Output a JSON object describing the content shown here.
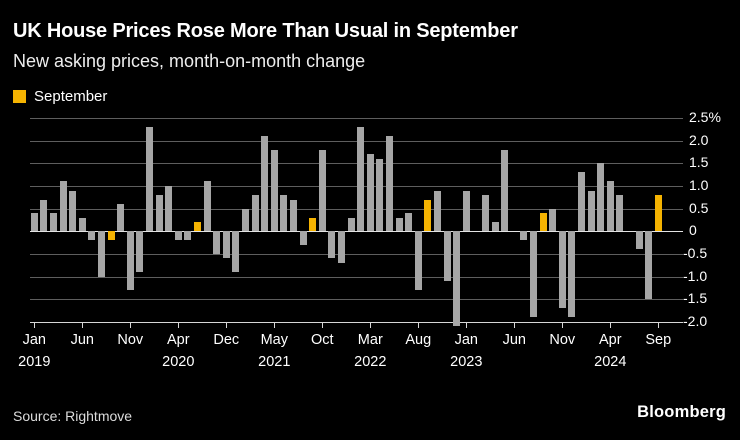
{
  "header": {
    "title": "UK House Prices Rose More Than Usual in September",
    "subtitle": "New asking prices, month-on-month change"
  },
  "legend": {
    "label": "September"
  },
  "footer": {
    "source": "Source: Rightmove",
    "brand": "Bloomberg"
  },
  "colors": {
    "background": "#000000",
    "bar": "#A6A6A6",
    "highlight": "#F5B301",
    "gridline": "#5E5E5E",
    "zero_line": "#E3E3E3",
    "axis_line": "#D7D7D7",
    "text": "#FFFFFF"
  },
  "chart_data": {
    "type": "bar",
    "title": "UK House Prices Rose More Than Usual in September",
    "subtitle": "New asking prices, month-on-month change",
    "unit": "%",
    "ylim": [
      -2.0,
      2.5
    ],
    "grid": true,
    "legend_position": "top-left",
    "legend_entries": [
      {
        "label": "September",
        "color": "#F5B301"
      }
    ],
    "ytick_values": [
      2.5,
      2.0,
      1.5,
      1.0,
      0.5,
      0,
      -0.5,
      -1.0,
      -1.5,
      -2.0
    ],
    "ytick_labels": [
      "2.5%",
      "2.0",
      "1.5",
      "1.0",
      "0.5",
      "0",
      "-0.5",
      "-1.0",
      "-1.5",
      "-2.0"
    ],
    "points": [
      {
        "month": "Jan 2019",
        "value": 0.4
      },
      {
        "month": "Feb 2019",
        "value": 0.7
      },
      {
        "month": "Mar 2019",
        "value": 0.4
      },
      {
        "month": "Apr 2019",
        "value": 1.1
      },
      {
        "month": "May 2019",
        "value": 0.9
      },
      {
        "month": "Jun 2019",
        "value": 0.3
      },
      {
        "month": "Jul 2019",
        "value": -0.2
      },
      {
        "month": "Aug 2019",
        "value": -1.0
      },
      {
        "month": "Sep 2019",
        "value": -0.2,
        "highlight": true
      },
      {
        "month": "Oct 2019",
        "value": 0.6
      },
      {
        "month": "Nov 2019",
        "value": -1.3
      },
      {
        "month": "Dec 2019",
        "value": -0.9
      },
      {
        "month": "Jan 2020",
        "value": 2.3
      },
      {
        "month": "Feb 2020",
        "value": 0.8
      },
      {
        "month": "Mar 2020",
        "value": 1.0
      },
      {
        "month": "Apr 2020",
        "value": -0.2
      },
      {
        "month": "Aug 2020",
        "value": -0.2
      },
      {
        "month": "Sep 2020",
        "value": 0.2,
        "highlight": true
      },
      {
        "month": "Oct 2020",
        "value": 1.1
      },
      {
        "month": "Nov 2020",
        "value": -0.5
      },
      {
        "month": "Dec 2020",
        "value": -0.6
      },
      {
        "month": "Jan 2021",
        "value": -0.9
      },
      {
        "month": "Feb 2021",
        "value": 0.5
      },
      {
        "month": "Mar 2021",
        "value": 0.8
      },
      {
        "month": "Apr 2021",
        "value": 2.1
      },
      {
        "month": "May 2021",
        "value": 1.8
      },
      {
        "month": "Jun 2021",
        "value": 0.8
      },
      {
        "month": "Jul 2021",
        "value": 0.7
      },
      {
        "month": "Aug 2021",
        "value": -0.3
      },
      {
        "month": "Sep 2021",
        "value": 0.3,
        "highlight": true
      },
      {
        "month": "Oct 2021",
        "value": 1.8
      },
      {
        "month": "Nov 2021",
        "value": -0.6
      },
      {
        "month": "Dec 2021",
        "value": -0.7
      },
      {
        "month": "Jan 2022",
        "value": 0.3
      },
      {
        "month": "Feb 2022",
        "value": 2.3
      },
      {
        "month": "Mar 2022",
        "value": 1.7
      },
      {
        "month": "Apr 2022",
        "value": 1.6
      },
      {
        "month": "May 2022",
        "value": 2.1
      },
      {
        "month": "Jun 2022",
        "value": 0.3
      },
      {
        "month": "Jul 2022",
        "value": 0.4
      },
      {
        "month": "Aug 2022",
        "value": -1.3
      },
      {
        "month": "Sep 2022",
        "value": 0.7,
        "highlight": true
      },
      {
        "month": "Oct 2022",
        "value": 0.9
      },
      {
        "month": "Nov 2022",
        "value": -1.1
      },
      {
        "month": "Dec 2022",
        "value": -2.1
      },
      {
        "month": "Jan 2023",
        "value": 0.9
      },
      {
        "month": "Feb 2023",
        "value": 0.0
      },
      {
        "month": "Mar 2023",
        "value": 0.8
      },
      {
        "month": "Apr 2023",
        "value": 0.2
      },
      {
        "month": "May 2023",
        "value": 1.8
      },
      {
        "month": "Jun 2023",
        "value": 0.0
      },
      {
        "month": "Jul 2023",
        "value": -0.2
      },
      {
        "month": "Aug 2023",
        "value": -1.9
      },
      {
        "month": "Sep 2023",
        "value": 0.4,
        "highlight": true
      },
      {
        "month": "Oct 2023",
        "value": 0.5
      },
      {
        "month": "Nov 2023",
        "value": -1.7
      },
      {
        "month": "Dec 2023",
        "value": -1.9
      },
      {
        "month": "Jan 2024",
        "value": 1.3
      },
      {
        "month": "Feb 2024",
        "value": 0.9
      },
      {
        "month": "Mar 2024",
        "value": 1.5
      },
      {
        "month": "Apr 2024",
        "value": 1.1
      },
      {
        "month": "May 2024",
        "value": 0.8
      },
      {
        "month": "Jun 2024",
        "value": 0.0
      },
      {
        "month": "Jul 2024",
        "value": -0.4
      },
      {
        "month": "Aug 2024",
        "value": -1.5
      },
      {
        "month": "Sep 2024",
        "value": 0.8,
        "highlight": true
      }
    ],
    "xticks": [
      {
        "index": 0,
        "label": "Jan",
        "year": "2019"
      },
      {
        "index": 5,
        "label": "Jun"
      },
      {
        "index": 10,
        "label": "Nov"
      },
      {
        "index": 15,
        "label": "Apr",
        "year": "2020"
      },
      {
        "index": 20,
        "label": "Dec"
      },
      {
        "index": 25,
        "label": "May",
        "year": "2021"
      },
      {
        "index": 30,
        "label": "Oct"
      },
      {
        "index": 35,
        "label": "Mar",
        "year": "2022"
      },
      {
        "index": 40,
        "label": "Aug"
      },
      {
        "index": 45,
        "label": "Jan",
        "year": "2023"
      },
      {
        "index": 50,
        "label": "Jun"
      },
      {
        "index": 55,
        "label": "Nov"
      },
      {
        "index": 60,
        "label": "Apr",
        "year": "2024"
      },
      {
        "index": 65,
        "label": "Sep"
      }
    ]
  }
}
